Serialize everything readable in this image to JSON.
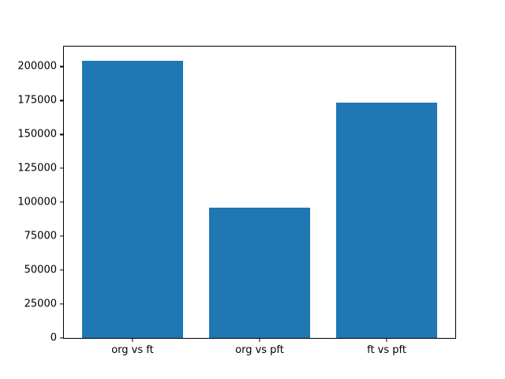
{
  "chart_data": {
    "type": "bar",
    "categories": [
      "org vs ft",
      "org vs pft",
      "ft vs pft"
    ],
    "values": [
      204600,
      95900,
      173500
    ],
    "title": "",
    "xlabel": "",
    "ylabel": "",
    "ylim": [
      0,
      214800
    ],
    "yticks": [
      0,
      25000,
      50000,
      75000,
      100000,
      125000,
      150000,
      175000,
      200000
    ],
    "bar_color": "#1f77b4",
    "bar_width_fraction": 0.8,
    "x_margin_fraction": 0.05,
    "grid": false,
    "legend": null,
    "background_color": "#ffffff",
    "spine_color": "#000000"
  }
}
